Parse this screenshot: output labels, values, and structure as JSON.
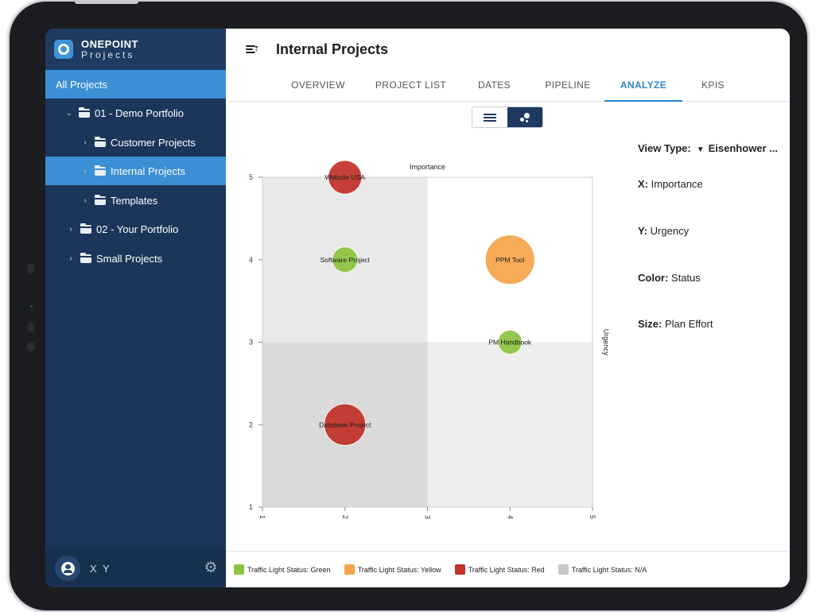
{
  "app": {
    "brand_name": "ONEPOINT",
    "brand_sub": "Projects"
  },
  "sidebar": {
    "items": [
      {
        "label": "All Projects",
        "active": false
      },
      {
        "label": "01 - Demo Portfolio",
        "icon": "folder-icon",
        "expanded": true
      },
      {
        "label": "Customer Projects",
        "icon": "folder-icon"
      },
      {
        "label": "Internal Projects",
        "icon": "folder-icon",
        "active": true
      },
      {
        "label": "Templates",
        "icon": "folder-icon"
      },
      {
        "label": "02 - Your Portfolio",
        "icon": "folder-icon"
      },
      {
        "label": "Small Projects",
        "icon": "small-projects-icon"
      }
    ],
    "user_name": "X Y"
  },
  "header": {
    "title": "Internal Projects"
  },
  "tabs": [
    {
      "label": "OVERVIEW"
    },
    {
      "label": "PROJECT LIST"
    },
    {
      "label": "DATES"
    },
    {
      "label": "PIPELINE"
    },
    {
      "label": "ANALYZE",
      "active": true
    },
    {
      "label": "KPIS"
    }
  ],
  "view_settings": {
    "view_type_label": "View Type:",
    "view_type_value": "Eisenhower ...",
    "x_label": "X:",
    "x_value": "Importance",
    "y_label": "Y:",
    "y_value": "Urgency",
    "color_label": "Color:",
    "color_value": "Status",
    "size_label": "Size:",
    "size_value": "Plan Effort"
  },
  "colors": {
    "green": "#8dc43f",
    "yellow": "#f7a44c",
    "red": "#c23028",
    "na": "#c8c8c8",
    "accent": "#2d86cc",
    "sidebar": "#1b365a"
  },
  "chart_data": {
    "type": "scatter",
    "subtype": "bubble",
    "xlabel": "Importance",
    "ylabel": "Urgency",
    "xlim": [
      1,
      5
    ],
    "ylim": [
      1,
      5
    ],
    "x_ticks": [
      "1",
      "2",
      "3",
      "4",
      "5"
    ],
    "y_ticks": [
      "1",
      "2",
      "3",
      "4",
      "5"
    ],
    "quadrants": "split at x=3, y=3",
    "points": [
      {
        "label": "Website USA",
        "x": 2,
        "y": 5,
        "status": "red",
        "size": 3
      },
      {
        "label": "Software Project",
        "x": 2,
        "y": 4,
        "status": "green",
        "size": 2
      },
      {
        "label": "PPM Tool",
        "x": 4,
        "y": 4,
        "status": "yellow",
        "size": 5
      },
      {
        "label": "PM Handbook",
        "x": 4,
        "y": 3,
        "status": "green",
        "size": 1.8
      },
      {
        "label": "Database Project",
        "x": 2,
        "y": 2,
        "status": "red",
        "size": 4
      }
    ]
  },
  "legend": [
    {
      "label": "Traffic Light Status: Green",
      "color": "#8dc43f"
    },
    {
      "label": "Traffic Light Status: Yellow",
      "color": "#f7a44c"
    },
    {
      "label": "Traffic Light Status: Red",
      "color": "#c23028"
    },
    {
      "label": "Traffic Light Status: N/A",
      "color": "#c8c8c8"
    }
  ]
}
